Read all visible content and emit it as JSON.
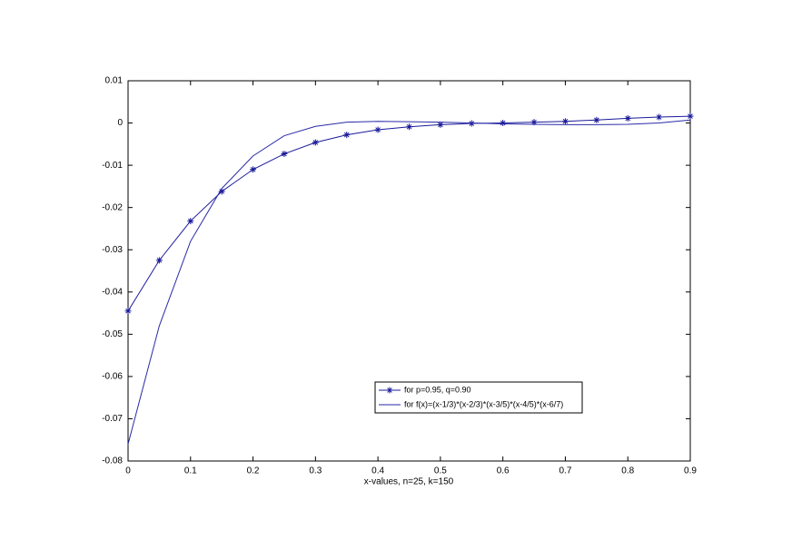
{
  "chart_data": {
    "type": "line",
    "xlabel": "x-values, n=25, k=150",
    "x": [
      0,
      0.05,
      0.1,
      0.15,
      0.2,
      0.25,
      0.3,
      0.35,
      0.4,
      0.45,
      0.5,
      0.55,
      0.6,
      0.65,
      0.7,
      0.75,
      0.8,
      0.85,
      0.9
    ],
    "series": [
      {
        "name": "for p=0.95, q=0.90",
        "color": "#1a1a9a",
        "marker": "star",
        "values": [
          -0.0445,
          -0.0325,
          -0.0232,
          -0.0162,
          -0.011,
          -0.0073,
          -0.0046,
          -0.0028,
          -0.0016,
          -0.0009,
          -0.0004,
          -0.0001,
          0,
          0.0002,
          0.0004,
          0.0007,
          0.0011,
          0.0014,
          0.0016
        ]
      },
      {
        "name": "for f(x)=(x-1/3)*(x-2/3)*(x-3/5)*(x-4/5)*(x-6/7)",
        "color": "#2a2aa8",
        "values": [
          -0.076,
          -0.048,
          -0.028,
          -0.0155,
          -0.0078,
          -0.003,
          -0.0008,
          0.0002,
          0.0004,
          0.0003,
          0.0002,
          0,
          -0.0002,
          -0.0003,
          -0.0004,
          -0.0004,
          -0.0003,
          0,
          0.0007
        ]
      }
    ],
    "xlim": [
      0,
      0.9
    ],
    "xticks": [
      0,
      0.1,
      0.2,
      0.3,
      0.4,
      0.5,
      0.6,
      0.7,
      0.8,
      0.9
    ],
    "ylim": [
      -0.08,
      0.01
    ],
    "yticks": [
      -0.08,
      -0.07,
      -0.06,
      -0.05,
      -0.04,
      -0.03,
      -0.02,
      -0.01,
      0,
      0.01
    ],
    "grid": false
  }
}
